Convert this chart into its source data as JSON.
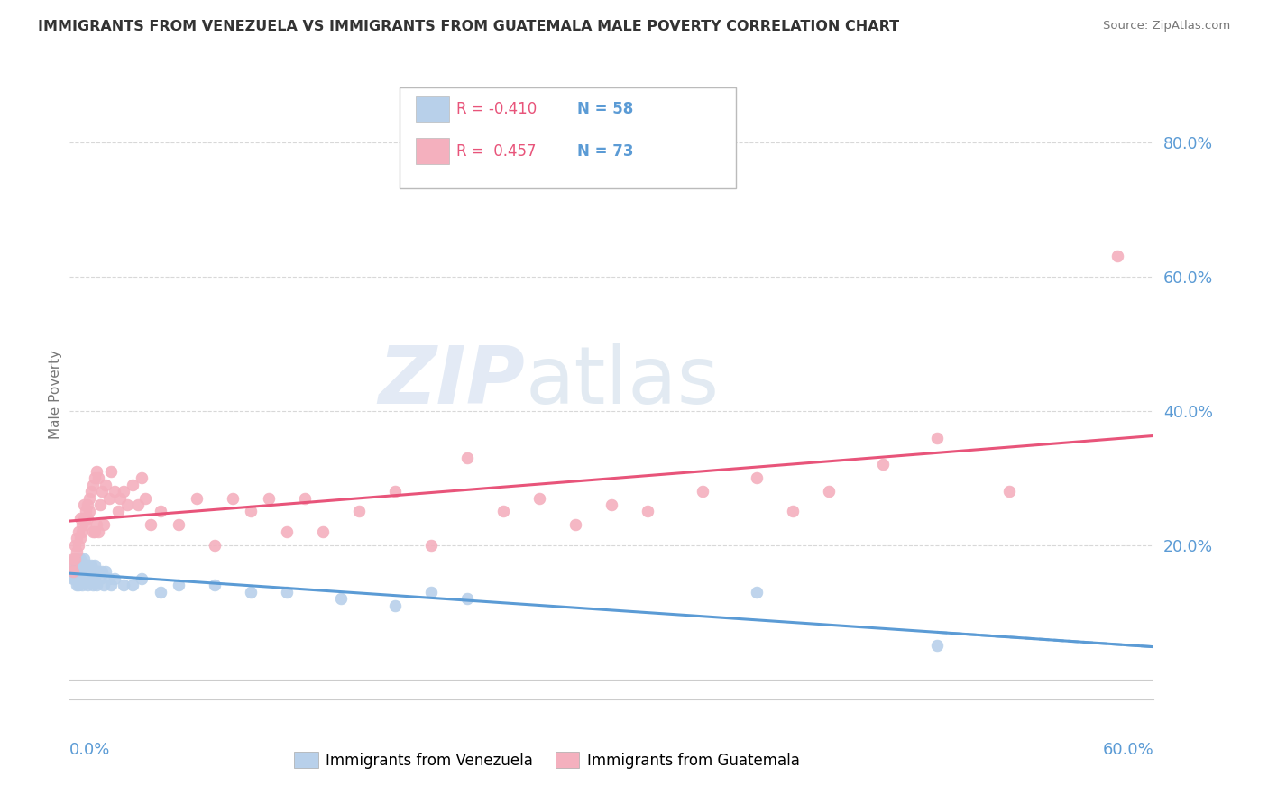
{
  "title": "IMMIGRANTS FROM VENEZUELA VS IMMIGRANTS FROM GUATEMALA MALE POVERTY CORRELATION CHART",
  "source": "Source: ZipAtlas.com",
  "ylabel": "Male Poverty",
  "y_ticks": [
    0.0,
    0.2,
    0.4,
    0.6,
    0.8
  ],
  "y_tick_labels": [
    "",
    "20.0%",
    "40.0%",
    "60.0%",
    "80.0%"
  ],
  "xlim": [
    0.0,
    0.6
  ],
  "ylim": [
    -0.03,
    0.88
  ],
  "legend_entries": [
    {
      "label_r": "R = -0.410",
      "label_n": "N = 58",
      "color": "#b8d0ea"
    },
    {
      "label_r": "R =  0.457",
      "label_n": "N = 73",
      "color": "#f4b0be"
    }
  ],
  "series": [
    {
      "name": "Immigrants from Venezuela",
      "color": "#b8d0ea",
      "trend_color": "#5b9bd5",
      "R": -0.41,
      "N": 58,
      "x": [
        0.001,
        0.002,
        0.002,
        0.003,
        0.003,
        0.003,
        0.004,
        0.004,
        0.004,
        0.005,
        0.005,
        0.005,
        0.006,
        0.006,
        0.006,
        0.007,
        0.007,
        0.007,
        0.008,
        0.008,
        0.008,
        0.009,
        0.009,
        0.01,
        0.01,
        0.01,
        0.011,
        0.011,
        0.012,
        0.012,
        0.013,
        0.013,
        0.014,
        0.014,
        0.015,
        0.015,
        0.016,
        0.017,
        0.018,
        0.019,
        0.02,
        0.022,
        0.023,
        0.025,
        0.03,
        0.035,
        0.04,
        0.05,
        0.06,
        0.08,
        0.1,
        0.12,
        0.15,
        0.18,
        0.2,
        0.22,
        0.38,
        0.48
      ],
      "y": [
        0.17,
        0.16,
        0.15,
        0.18,
        0.16,
        0.15,
        0.17,
        0.16,
        0.14,
        0.18,
        0.16,
        0.14,
        0.18,
        0.16,
        0.15,
        0.17,
        0.16,
        0.14,
        0.18,
        0.16,
        0.15,
        0.17,
        0.15,
        0.17,
        0.16,
        0.14,
        0.16,
        0.15,
        0.17,
        0.15,
        0.16,
        0.14,
        0.17,
        0.15,
        0.16,
        0.14,
        0.16,
        0.15,
        0.16,
        0.14,
        0.16,
        0.15,
        0.14,
        0.15,
        0.14,
        0.14,
        0.15,
        0.13,
        0.14,
        0.14,
        0.13,
        0.13,
        0.12,
        0.11,
        0.13,
        0.12,
        0.13,
        0.05
      ]
    },
    {
      "name": "Immigrants from Guatemala",
      "color": "#f4b0be",
      "trend_color": "#e8547a",
      "R": 0.457,
      "N": 73,
      "x": [
        0.001,
        0.002,
        0.002,
        0.003,
        0.003,
        0.004,
        0.004,
        0.005,
        0.005,
        0.006,
        0.006,
        0.007,
        0.007,
        0.008,
        0.008,
        0.009,
        0.009,
        0.01,
        0.01,
        0.011,
        0.011,
        0.012,
        0.013,
        0.013,
        0.014,
        0.014,
        0.015,
        0.015,
        0.016,
        0.016,
        0.017,
        0.018,
        0.019,
        0.02,
        0.022,
        0.023,
        0.025,
        0.027,
        0.028,
        0.03,
        0.032,
        0.035,
        0.038,
        0.04,
        0.042,
        0.045,
        0.05,
        0.06,
        0.07,
        0.08,
        0.09,
        0.1,
        0.11,
        0.12,
        0.13,
        0.14,
        0.16,
        0.18,
        0.2,
        0.22,
        0.24,
        0.26,
        0.28,
        0.3,
        0.32,
        0.35,
        0.38,
        0.4,
        0.42,
        0.45,
        0.48,
        0.52,
        0.58
      ],
      "y": [
        0.17,
        0.18,
        0.16,
        0.2,
        0.18,
        0.21,
        0.19,
        0.22,
        0.2,
        0.24,
        0.21,
        0.23,
        0.22,
        0.26,
        0.24,
        0.25,
        0.23,
        0.26,
        0.24,
        0.27,
        0.25,
        0.28,
        0.29,
        0.22,
        0.3,
        0.22,
        0.31,
        0.23,
        0.3,
        0.22,
        0.26,
        0.28,
        0.23,
        0.29,
        0.27,
        0.31,
        0.28,
        0.25,
        0.27,
        0.28,
        0.26,
        0.29,
        0.26,
        0.3,
        0.27,
        0.23,
        0.25,
        0.23,
        0.27,
        0.2,
        0.27,
        0.25,
        0.27,
        0.22,
        0.27,
        0.22,
        0.25,
        0.28,
        0.2,
        0.33,
        0.25,
        0.27,
        0.23,
        0.26,
        0.25,
        0.28,
        0.3,
        0.25,
        0.28,
        0.32,
        0.36,
        0.28,
        0.63
      ]
    }
  ],
  "background_color": "#ffffff",
  "grid_color": "#d8d8d8",
  "title_color": "#333333",
  "axis_label_color": "#5b9bd5",
  "right_axis_color": "#5b9bd5",
  "legend_r_color": "#e8547a",
  "legend_n_color": "#5b9bd5"
}
